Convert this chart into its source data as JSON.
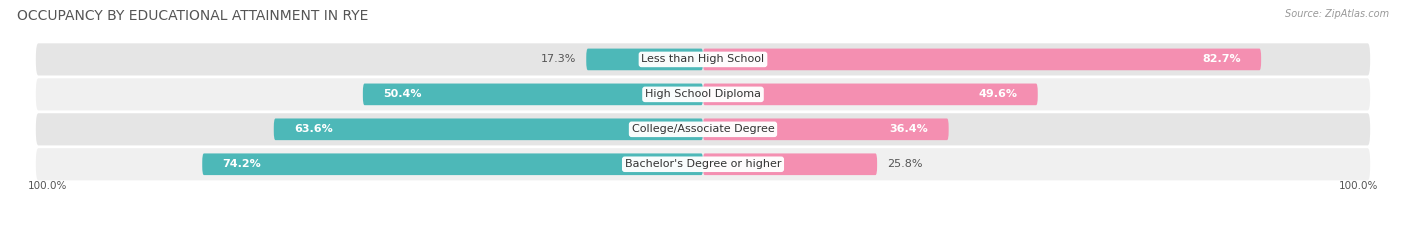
{
  "title": "OCCUPANCY BY EDUCATIONAL ATTAINMENT IN RYE",
  "source": "Source: ZipAtlas.com",
  "categories": [
    "Less than High School",
    "High School Diploma",
    "College/Associate Degree",
    "Bachelor's Degree or higher"
  ],
  "owner_pct": [
    17.3,
    50.4,
    63.6,
    74.2
  ],
  "renter_pct": [
    82.7,
    49.6,
    36.4,
    25.8
  ],
  "owner_color": "#4db8b8",
  "renter_color": "#f48fb1",
  "row_bg_color_odd": "#f0f0f0",
  "row_bg_color_even": "#e5e5e5",
  "title_fontsize": 10,
  "source_fontsize": 7,
  "label_fontsize": 8,
  "value_fontsize": 8,
  "axis_label_fontsize": 7.5,
  "legend_fontsize": 8,
  "bar_height": 0.62,
  "fig_width": 14.06,
  "fig_height": 2.33
}
